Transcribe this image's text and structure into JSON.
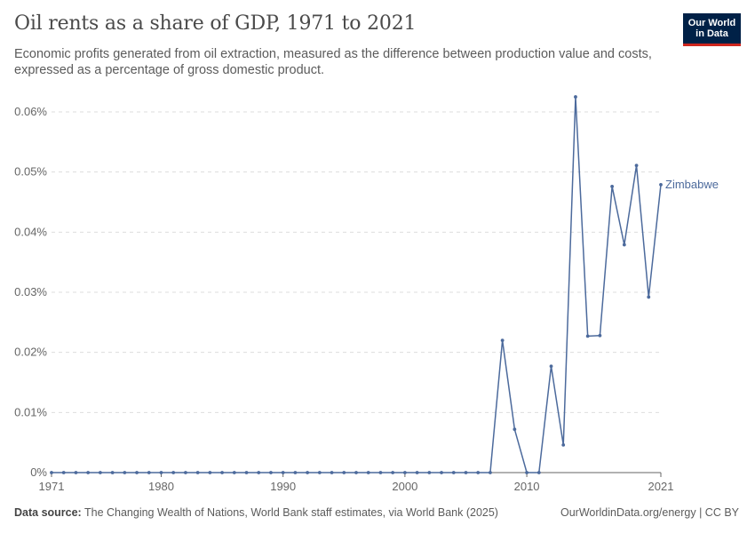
{
  "header": {
    "title": "Oil rents as a share of GDP, 1971 to 2021",
    "subtitle": "Economic profits generated from oil extraction, measured as the difference between production value and costs, expressed as a percentage of gross domestic product."
  },
  "logo": {
    "line1": "Our World",
    "line2": "in Data"
  },
  "footer": {
    "source_label": "Data source:",
    "source_text": "The Changing Wealth of Nations, World Bank staff estimates, via World Bank (2025)",
    "link": "OurWorldinData.org/energy | CC BY"
  },
  "colors": {
    "series": "#4c6a9c",
    "grid": "#dddddd",
    "axis": "#666666",
    "text": "#666666"
  },
  "chart_data": {
    "type": "line",
    "title": "Oil rents as a share of GDP, 1971 to 2021",
    "xlabel": "",
    "ylabel": "",
    "xlim": [
      1971,
      2021
    ],
    "ylim": [
      0,
      0.06
    ],
    "x_ticks": [
      1971,
      1980,
      1990,
      2000,
      2010,
      2021
    ],
    "y_ticks": [
      0,
      0.01,
      0.02,
      0.03,
      0.04,
      0.05,
      0.06
    ],
    "y_tick_labels": [
      "0%",
      "0.01%",
      "0.02%",
      "0.03%",
      "0.04%",
      "0.05%",
      "0.06%"
    ],
    "grid": "horizontal dashed",
    "series": [
      {
        "name": "Zimbabwe",
        "x": [
          1971,
          1972,
          1973,
          1974,
          1975,
          1976,
          1977,
          1978,
          1979,
          1980,
          1981,
          1982,
          1983,
          1984,
          1985,
          1986,
          1987,
          1988,
          1989,
          1990,
          1991,
          1992,
          1993,
          1994,
          1995,
          1996,
          1997,
          1998,
          1999,
          2000,
          2001,
          2002,
          2003,
          2004,
          2005,
          2006,
          2007,
          2008,
          2009,
          2010,
          2011,
          2012,
          2013,
          2014,
          2015,
          2016,
          2017,
          2018,
          2019,
          2020,
          2021
        ],
        "values": [
          0,
          0,
          0,
          0,
          0,
          0,
          0,
          0,
          0,
          0,
          0,
          0,
          0,
          0,
          0,
          0,
          0,
          0,
          0,
          0,
          0,
          0,
          0,
          0,
          0,
          0,
          0,
          0,
          0,
          0,
          0,
          0,
          0,
          0,
          0,
          0,
          0,
          0.022,
          0.0072,
          0,
          0,
          0.0177,
          0.0046,
          0.0625,
          0.0227,
          0.0228,
          0.0476,
          0.0379,
          0.0511,
          0.0292,
          0.0479
        ]
      }
    ]
  }
}
